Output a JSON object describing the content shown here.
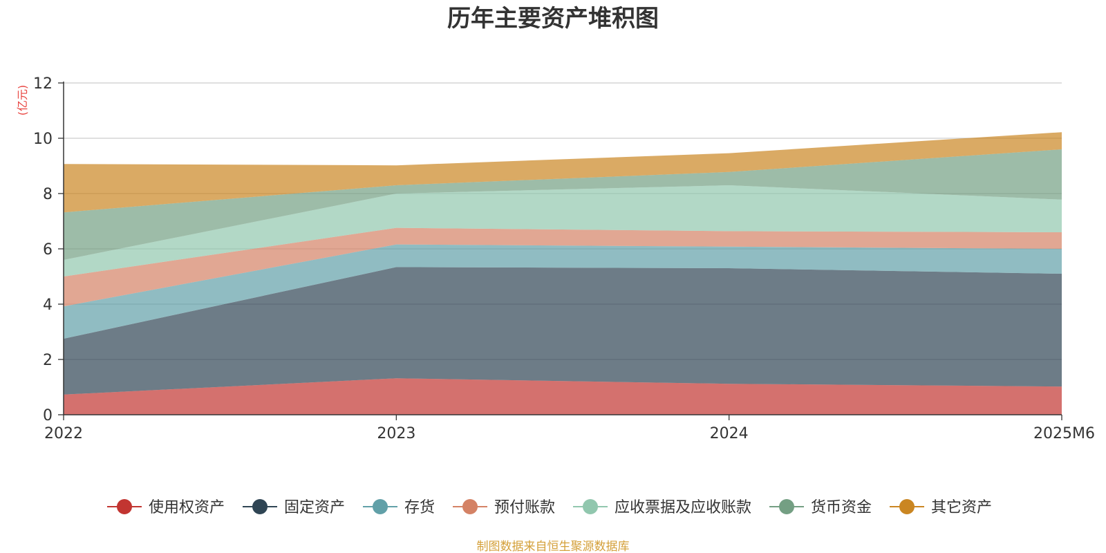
{
  "chart_data": {
    "type": "area",
    "stacked": true,
    "title": "历年主要资产堆积图",
    "ylabel": "(亿元)",
    "xlabel": "",
    "categories": [
      "2022",
      "2023",
      "2024",
      "2025M6"
    ],
    "ylim": [
      0,
      12
    ],
    "yticks": [
      0,
      2,
      4,
      6,
      8,
      10,
      12
    ],
    "grid": true,
    "legend_position": "bottom",
    "series": [
      {
        "name": "使用权资产",
        "color": "#c23531",
        "values": [
          0.73,
          1.32,
          1.12,
          1.02
        ]
      },
      {
        "name": "固定资产",
        "color": "#2f4554",
        "values": [
          2.02,
          4.02,
          4.18,
          4.08
        ]
      },
      {
        "name": "存货",
        "color": "#61a0a8",
        "values": [
          1.17,
          0.82,
          0.78,
          0.9
        ]
      },
      {
        "name": "预付账款",
        "color": "#d48265",
        "values": [
          1.08,
          0.6,
          0.56,
          0.6
        ]
      },
      {
        "name": "应收票据及应收账款",
        "color": "#91c7ae",
        "values": [
          0.6,
          1.24,
          1.66,
          1.18
        ]
      },
      {
        "name": "货币资金",
        "color": "#749f83",
        "values": [
          1.72,
          0.3,
          0.48,
          1.82
        ]
      },
      {
        "name": "其它资产",
        "color": "#ca8622",
        "values": [
          1.75,
          0.72,
          0.68,
          0.62
        ]
      }
    ],
    "source": "制图数据来自恒生聚源数据库"
  }
}
